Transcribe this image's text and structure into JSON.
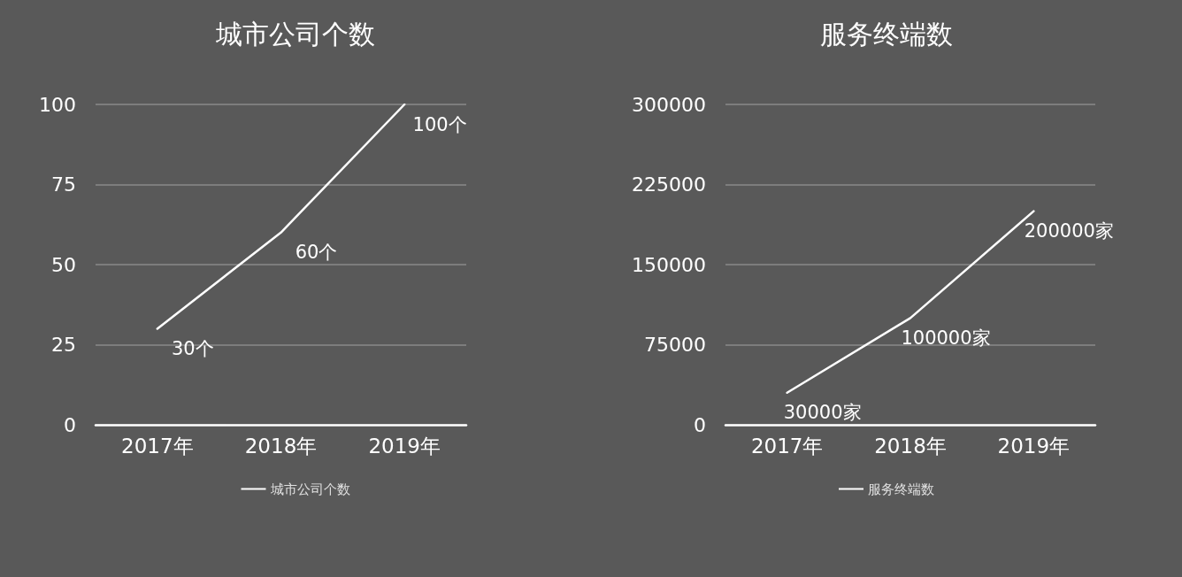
{
  "chart_data": [
    {
      "type": "line",
      "title": "城市公司个数",
      "categories": [
        "2017年",
        "2018年",
        "2019年"
      ],
      "series": [
        {
          "name": "城市公司个数",
          "color": "#ffffff",
          "values": [
            30,
            60,
            100
          ],
          "value_labels": [
            "30个",
            "60个",
            "100个"
          ]
        }
      ],
      "ylim": [
        0,
        100
      ],
      "yticks": [
        0,
        25,
        50,
        75,
        100
      ],
      "grid": "y",
      "legend": "bottom",
      "marker": "none"
    },
    {
      "type": "line",
      "title": "服务终端数",
      "categories": [
        "2017年",
        "2018年",
        "2019年"
      ],
      "series": [
        {
          "name": "服务终端数",
          "color": "#ffffff",
          "values": [
            30000,
            100000,
            200000
          ],
          "value_labels": [
            "30000家",
            "100000家",
            "200000家"
          ]
        }
      ],
      "ylim": [
        0,
        300000
      ],
      "yticks": [
        0,
        75000,
        150000,
        225000,
        300000
      ],
      "grid": "y",
      "legend": "bottom",
      "marker": "none"
    }
  ]
}
